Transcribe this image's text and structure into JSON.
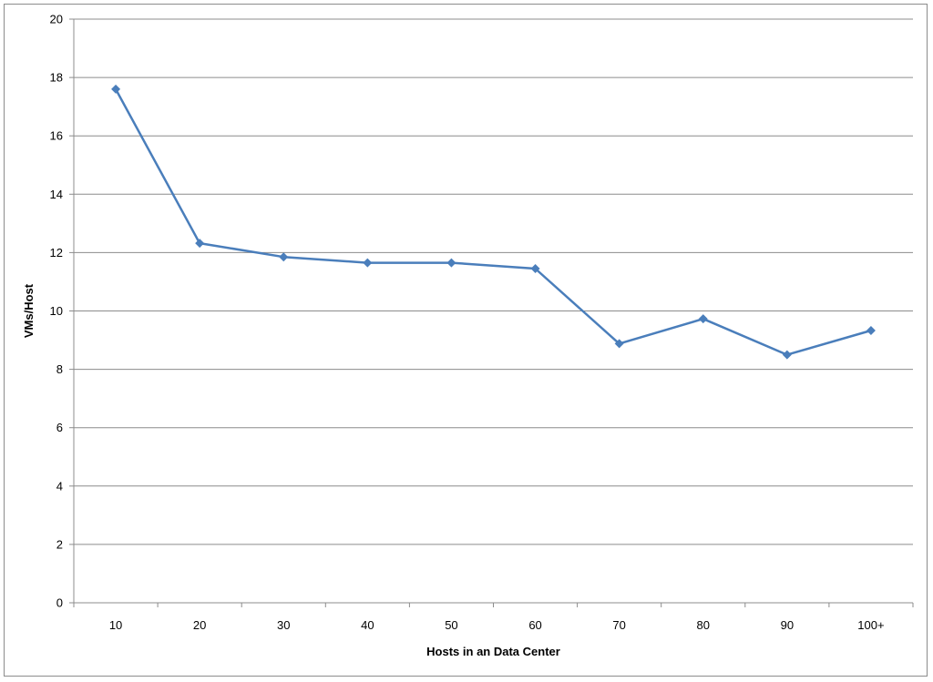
{
  "chart_data": {
    "type": "line",
    "title": "",
    "xlabel": "Hosts in an Data Center",
    "ylabel": "VMs/Host",
    "categories": [
      "10",
      "20",
      "30",
      "40",
      "50",
      "60",
      "70",
      "80",
      "90",
      "100+"
    ],
    "series": [
      {
        "values": [
          17.6,
          12.32,
          11.85,
          11.65,
          11.65,
          11.45,
          8.88,
          9.73,
          8.5,
          9.33
        ],
        "color": "#4a7ebb",
        "marker": "diamond"
      }
    ],
    "ylim": [
      0,
      20
    ],
    "yticks": [
      0,
      2,
      4,
      6,
      8,
      10,
      12,
      14,
      16,
      18,
      20
    ],
    "grid": true,
    "legend": "none"
  },
  "colors": {
    "series_line": "#4a7ebb",
    "gridline": "#8c8c8c",
    "axis": "#8c8c8c",
    "text": "#000000"
  }
}
